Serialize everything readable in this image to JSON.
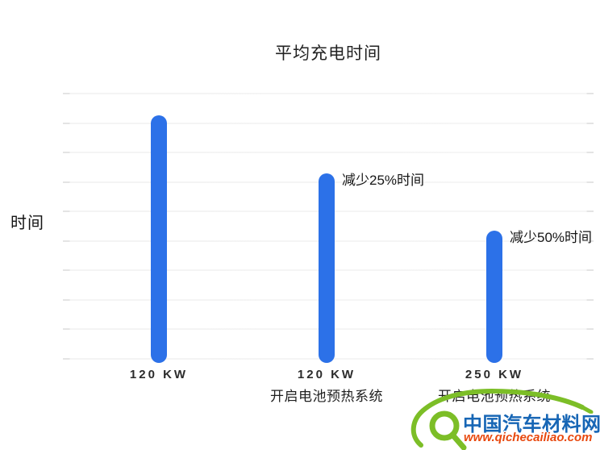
{
  "page": {
    "background": "#ffffff"
  },
  "chart_data": {
    "type": "bar",
    "title": "平均充电时间",
    "xlabel": "",
    "ylabel": "时间",
    "legend": "none",
    "grid": "10 faint horizontal gridlines, no numeric tick labels",
    "axis_note": "y axis is unlabeled relative charging time; values implied by annotations",
    "bar_color": "#2c71e8",
    "categories": [
      {
        "line1": "120 KW",
        "line2": ""
      },
      {
        "line1": "120 KW",
        "line2": "开启电池预热系统"
      },
      {
        "line1": "250 KW",
        "line2": "开启电池预热系统"
      }
    ],
    "values_relative_percent": [
      100,
      75,
      50
    ],
    "annotations": [
      "",
      "减少25%时间",
      "减少50%时间"
    ]
  },
  "watermark": {
    "name": "中国汽车材料网",
    "url": "www.qichecailiao.com",
    "green": "#7cbe27",
    "blue": "#1766b5",
    "orange": "#e8490f"
  }
}
